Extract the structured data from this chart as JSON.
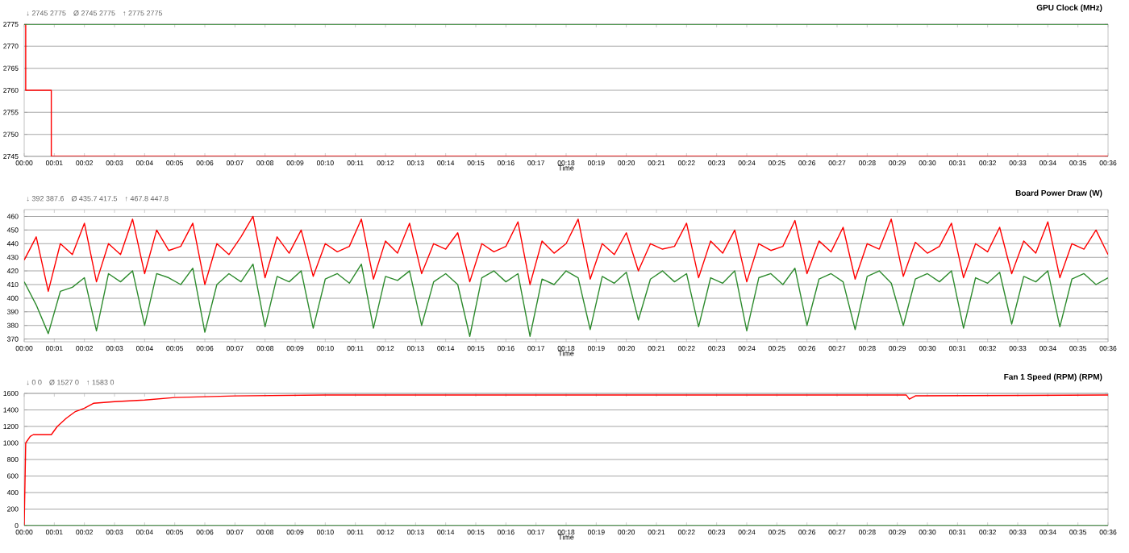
{
  "chart_data": [
    {
      "type": "line",
      "title": "GPU Clock (MHz)",
      "xlabel": "Time",
      "annotations": [
        "↓ 2745 2775",
        "Ø 2745 2775",
        "↑ 2775 2775"
      ],
      "series": [
        {
          "type": "step",
          "color": "#ff0000",
          "x": [
            0,
            0.05,
            0.9,
            36
          ],
          "values": [
            2775,
            2760,
            2745,
            2745
          ]
        },
        {
          "color": "#2e8b2e",
          "x": [
            0,
            36
          ],
          "values": [
            2775,
            2775
          ]
        }
      ],
      "xlim": [
        0,
        36
      ],
      "ylim": [
        2745,
        2775
      ],
      "yticks": [
        2745,
        2750,
        2755,
        2760,
        2765,
        2770,
        2775
      ],
      "xticks": [
        {
          "value": 0,
          "label": "00:00"
        },
        {
          "value": 1,
          "label": "00:01"
        },
        {
          "value": 2,
          "label": "00:02"
        },
        {
          "value": 3,
          "label": "00:03"
        },
        {
          "value": 4,
          "label": "00:04"
        },
        {
          "value": 5,
          "label": "00:05"
        },
        {
          "value": 6,
          "label": "00:06"
        },
        {
          "value": 7,
          "label": "00:07"
        },
        {
          "value": 8,
          "label": "00:08"
        },
        {
          "value": 9,
          "label": "00:09"
        },
        {
          "value": 10,
          "label": "00:10"
        },
        {
          "value": 11,
          "label": "00:11"
        },
        {
          "value": 12,
          "label": "00:12"
        },
        {
          "value": 13,
          "label": "00:13"
        },
        {
          "value": 14,
          "label": "00:14"
        },
        {
          "value": 15,
          "label": "00:15"
        },
        {
          "value": 16,
          "label": "00:16"
        },
        {
          "value": 17,
          "label": "00:17"
        },
        {
          "value": 18,
          "label": "00:18"
        },
        {
          "value": 19,
          "label": "00:19"
        },
        {
          "value": 20,
          "label": "00:20"
        },
        {
          "value": 21,
          "label": "00:21"
        },
        {
          "value": 22,
          "label": "00:22"
        },
        {
          "value": 23,
          "label": "00:23"
        },
        {
          "value": 24,
          "label": "00:24"
        },
        {
          "value": 25,
          "label": "00:25"
        },
        {
          "value": 26,
          "label": "00:26"
        },
        {
          "value": 27,
          "label": "00:27"
        },
        {
          "value": 28,
          "label": "00:28"
        },
        {
          "value": 29,
          "label": "00:29"
        },
        {
          "value": 30,
          "label": "00:30"
        },
        {
          "value": 31,
          "label": "00:31"
        },
        {
          "value": 32,
          "label": "00:32"
        },
        {
          "value": 33,
          "label": "00:33"
        },
        {
          "value": 34,
          "label": "00:34"
        },
        {
          "value": 35,
          "label": "00:35"
        },
        {
          "value": 36,
          "label": "00:36"
        }
      ],
      "grid": "y"
    },
    {
      "type": "line",
      "title": "Board Power Draw (W)",
      "xlabel": "Time",
      "annotations": [
        "↓ 392 387.6",
        "Ø 435.7 417.5",
        "↑ 467.8 447.8"
      ],
      "series": [
        {
          "color": "#ff0000",
          "x": [
            0,
            0.4,
            0.8,
            1.2,
            1.6,
            2.0,
            2.4,
            2.8,
            3.2,
            3.6,
            4.0,
            4.4,
            4.8,
            5.2,
            5.6,
            6.0,
            6.4,
            6.8,
            7.2,
            7.6,
            8.0,
            8.4,
            8.8,
            9.2,
            9.6,
            10.0,
            10.4,
            10.8,
            11.2,
            11.6,
            12.0,
            12.4,
            12.8,
            13.2,
            13.6,
            14.0,
            14.4,
            14.8,
            15.2,
            15.6,
            16.0,
            16.4,
            16.8,
            17.2,
            17.6,
            18.0,
            18.4,
            18.8,
            19.2,
            19.6,
            20.0,
            20.4,
            20.8,
            21.2,
            21.6,
            22.0,
            22.4,
            22.8,
            23.2,
            23.6,
            24.0,
            24.4,
            24.8,
            25.2,
            25.6,
            26.0,
            26.4,
            26.8,
            27.2,
            27.6,
            28.0,
            28.4,
            28.8,
            29.2,
            29.6,
            30.0,
            30.4,
            30.8,
            31.2,
            31.6,
            32.0,
            32.4,
            32.8,
            33.2,
            33.6,
            34.0,
            34.4,
            34.8,
            35.2,
            35.6,
            36.0
          ],
          "values": [
            428,
            445,
            405,
            440,
            432,
            455,
            412,
            440,
            432,
            458,
            418,
            450,
            435,
            438,
            455,
            410,
            440,
            432,
            445,
            460,
            415,
            445,
            433,
            450,
            416,
            440,
            434,
            438,
            458,
            414,
            442,
            433,
            455,
            418,
            440,
            436,
            448,
            412,
            440,
            434,
            438,
            456,
            410,
            442,
            433,
            440,
            458,
            414,
            440,
            432,
            448,
            420,
            440,
            436,
            438,
            455,
            415,
            442,
            433,
            450,
            412,
            440,
            435,
            438,
            457,
            418,
            442,
            434,
            452,
            414,
            440,
            436,
            458,
            416,
            441,
            433,
            438,
            455,
            415,
            440,
            434,
            452,
            418,
            442,
            433,
            456,
            415,
            440,
            436,
            450,
            432
          ]
        },
        {
          "color": "#2e8b2e",
          "x": [
            0,
            0.4,
            0.8,
            1.2,
            1.6,
            2.0,
            2.4,
            2.8,
            3.2,
            3.6,
            4.0,
            4.4,
            4.8,
            5.2,
            5.6,
            6.0,
            6.4,
            6.8,
            7.2,
            7.6,
            8.0,
            8.4,
            8.8,
            9.2,
            9.6,
            10.0,
            10.4,
            10.8,
            11.2,
            11.6,
            12.0,
            12.4,
            12.8,
            13.2,
            13.6,
            14.0,
            14.4,
            14.8,
            15.2,
            15.6,
            16.0,
            16.4,
            16.8,
            17.2,
            17.6,
            18.0,
            18.4,
            18.8,
            19.2,
            19.6,
            20.0,
            20.4,
            20.8,
            21.2,
            21.6,
            22.0,
            22.4,
            22.8,
            23.2,
            23.6,
            24.0,
            24.4,
            24.8,
            25.2,
            25.6,
            26.0,
            26.4,
            26.8,
            27.2,
            27.6,
            28.0,
            28.4,
            28.8,
            29.2,
            29.6,
            30.0,
            30.4,
            30.8,
            31.2,
            31.6,
            32.0,
            32.4,
            32.8,
            33.2,
            33.6,
            34.0,
            34.4,
            34.8,
            35.2,
            35.6,
            36.0
          ],
          "values": [
            412,
            395,
            374,
            405,
            408,
            415,
            376,
            418,
            412,
            420,
            380,
            418,
            415,
            410,
            422,
            375,
            410,
            418,
            412,
            425,
            379,
            416,
            412,
            420,
            378,
            414,
            418,
            411,
            425,
            378,
            416,
            413,
            420,
            380,
            412,
            418,
            410,
            372,
            415,
            420,
            412,
            418,
            372,
            414,
            410,
            420,
            415,
            377,
            416,
            411,
            419,
            384,
            414,
            420,
            412,
            418,
            379,
            415,
            411,
            420,
            376,
            415,
            418,
            410,
            422,
            380,
            414,
            418,
            412,
            377,
            416,
            420,
            411,
            380,
            414,
            418,
            412,
            420,
            378,
            415,
            411,
            419,
            381,
            416,
            412,
            420,
            379,
            414,
            418,
            410,
            415
          ]
        }
      ],
      "xlim": [
        0,
        36
      ],
      "ylim": [
        368,
        465
      ],
      "yticks": [
        370,
        380,
        390,
        400,
        410,
        420,
        430,
        440,
        450,
        460
      ],
      "xticks": [
        {
          "value": 0,
          "label": "00:00"
        },
        {
          "value": 1,
          "label": "00:01"
        },
        {
          "value": 2,
          "label": "00:02"
        },
        {
          "value": 3,
          "label": "00:03"
        },
        {
          "value": 4,
          "label": "00:04"
        },
        {
          "value": 5,
          "label": "00:05"
        },
        {
          "value": 6,
          "label": "00:06"
        },
        {
          "value": 7,
          "label": "00:07"
        },
        {
          "value": 8,
          "label": "00:08"
        },
        {
          "value": 9,
          "label": "00:09"
        },
        {
          "value": 10,
          "label": "00:10"
        },
        {
          "value": 11,
          "label": "00:11"
        },
        {
          "value": 12,
          "label": "00:12"
        },
        {
          "value": 13,
          "label": "00:13"
        },
        {
          "value": 14,
          "label": "00:14"
        },
        {
          "value": 15,
          "label": "00:15"
        },
        {
          "value": 16,
          "label": "00:16"
        },
        {
          "value": 17,
          "label": "00:17"
        },
        {
          "value": 18,
          "label": "00:18"
        },
        {
          "value": 19,
          "label": "00:19"
        },
        {
          "value": 20,
          "label": "00:20"
        },
        {
          "value": 21,
          "label": "00:21"
        },
        {
          "value": 22,
          "label": "00:22"
        },
        {
          "value": 23,
          "label": "00:23"
        },
        {
          "value": 24,
          "label": "00:24"
        },
        {
          "value": 25,
          "label": "00:25"
        },
        {
          "value": 26,
          "label": "00:26"
        },
        {
          "value": 27,
          "label": "00:27"
        },
        {
          "value": 28,
          "label": "00:28"
        },
        {
          "value": 29,
          "label": "00:29"
        },
        {
          "value": 30,
          "label": "00:30"
        },
        {
          "value": 31,
          "label": "00:31"
        },
        {
          "value": 32,
          "label": "00:32"
        },
        {
          "value": 33,
          "label": "00:33"
        },
        {
          "value": 34,
          "label": "00:34"
        },
        {
          "value": 35,
          "label": "00:35"
        },
        {
          "value": 36,
          "label": "00:36"
        }
      ],
      "grid": "y"
    },
    {
      "type": "line",
      "title": "Fan 1 Speed (RPM) (RPM)",
      "xlabel": "Time",
      "annotations": [
        "↓ 0 0",
        "Ø 1527 0",
        "↑ 1583 0"
      ],
      "series": [
        {
          "color": "#ff0000",
          "x": [
            0,
            0.05,
            0.2,
            0.3,
            0.9,
            1.1,
            1.4,
            1.7,
            2.0,
            2.3,
            3.0,
            4.0,
            5.0,
            6.0,
            7.0,
            10,
            20,
            29.3,
            29.4,
            29.6,
            36
          ],
          "values": [
            0,
            1000,
            1080,
            1100,
            1100,
            1200,
            1300,
            1380,
            1420,
            1480,
            1500,
            1520,
            1550,
            1560,
            1570,
            1580,
            1580,
            1580,
            1530,
            1570,
            1580
          ]
        },
        {
          "color": "#2e8b2e",
          "x": [
            0,
            36
          ],
          "values": [
            0,
            0
          ]
        }
      ],
      "xlim": [
        0,
        36
      ],
      "ylim": [
        0,
        1600
      ],
      "yticks": [
        0,
        200,
        400,
        600,
        800,
        1000,
        1200,
        1400,
        1600
      ],
      "xticks": [
        {
          "value": 0,
          "label": "00:00"
        },
        {
          "value": 1,
          "label": "00:01"
        },
        {
          "value": 2,
          "label": "00:02"
        },
        {
          "value": 3,
          "label": "00:03"
        },
        {
          "value": 4,
          "label": "00:04"
        },
        {
          "value": 5,
          "label": "00:05"
        },
        {
          "value": 6,
          "label": "00:06"
        },
        {
          "value": 7,
          "label": "00:07"
        },
        {
          "value": 8,
          "label": "00:08"
        },
        {
          "value": 9,
          "label": "00:09"
        },
        {
          "value": 10,
          "label": "00:10"
        },
        {
          "value": 11,
          "label": "00:11"
        },
        {
          "value": 12,
          "label": "00:12"
        },
        {
          "value": 13,
          "label": "00:13"
        },
        {
          "value": 14,
          "label": "00:14"
        },
        {
          "value": 15,
          "label": "00:15"
        },
        {
          "value": 16,
          "label": "00:16"
        },
        {
          "value": 17,
          "label": "00:17"
        },
        {
          "value": 18,
          "label": "00:18"
        },
        {
          "value": 19,
          "label": "00:19"
        },
        {
          "value": 20,
          "label": "00:20"
        },
        {
          "value": 21,
          "label": "00:21"
        },
        {
          "value": 22,
          "label": "00:22"
        },
        {
          "value": 23,
          "label": "00:23"
        },
        {
          "value": 24,
          "label": "00:24"
        },
        {
          "value": 25,
          "label": "00:25"
        },
        {
          "value": 26,
          "label": "00:26"
        },
        {
          "value": 27,
          "label": "00:27"
        },
        {
          "value": 28,
          "label": "00:28"
        },
        {
          "value": 29,
          "label": "00:29"
        },
        {
          "value": 30,
          "label": "00:30"
        },
        {
          "value": 31,
          "label": "00:31"
        },
        {
          "value": 32,
          "label": "00:32"
        },
        {
          "value": 33,
          "label": "00:33"
        },
        {
          "value": 34,
          "label": "00:34"
        },
        {
          "value": 35,
          "label": "00:35"
        },
        {
          "value": 36,
          "label": "00:36"
        }
      ],
      "grid": "y"
    }
  ]
}
